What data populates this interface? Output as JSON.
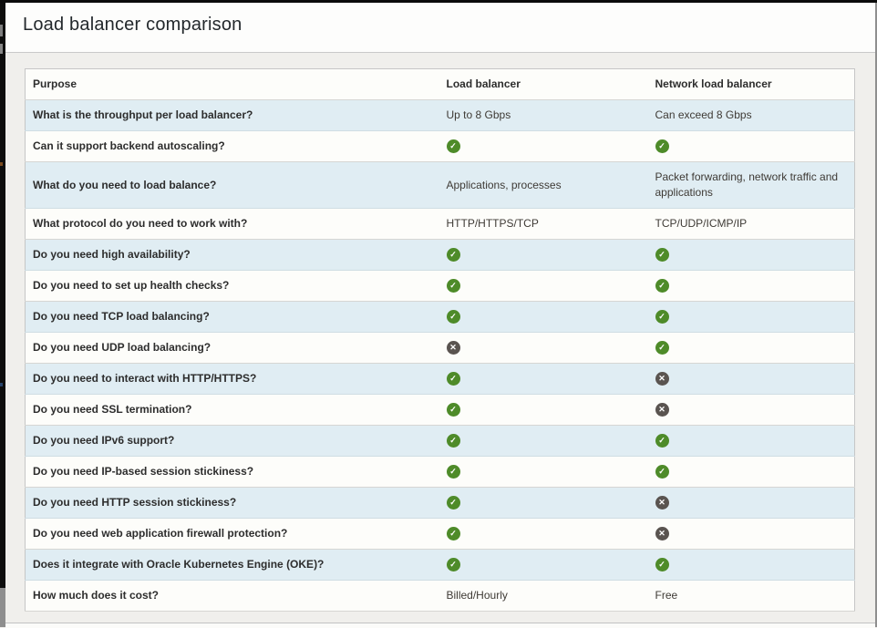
{
  "window": {
    "title": "Load balancer comparison"
  },
  "table": {
    "columns": [
      "Purpose",
      "Load balancer",
      "Network load balancer"
    ],
    "rows": [
      {
        "question": "What is the throughput per load balancer?",
        "load_balancer": {
          "kind": "text",
          "text": "Up to 8 Gbps"
        },
        "network_load_balancer": {
          "kind": "text",
          "text": "Can exceed 8 Gbps"
        }
      },
      {
        "question": "Can it support backend autoscaling?",
        "load_balancer": {
          "kind": "check"
        },
        "network_load_balancer": {
          "kind": "check"
        }
      },
      {
        "question": "What do you need to load balance?",
        "load_balancer": {
          "kind": "text",
          "text": "Applications, processes"
        },
        "network_load_balancer": {
          "kind": "text",
          "text": "Packet forwarding, network traffic and applications"
        }
      },
      {
        "question": "What protocol do you need to work with?",
        "load_balancer": {
          "kind": "text",
          "text": "HTTP/HTTPS/TCP"
        },
        "network_load_balancer": {
          "kind": "text",
          "text": "TCP/UDP/ICMP/IP"
        }
      },
      {
        "question": "Do you need high availability?",
        "load_balancer": {
          "kind": "check"
        },
        "network_load_balancer": {
          "kind": "check"
        }
      },
      {
        "question": "Do you need to set up health checks?",
        "load_balancer": {
          "kind": "check"
        },
        "network_load_balancer": {
          "kind": "check"
        }
      },
      {
        "question": "Do you need TCP load balancing?",
        "load_balancer": {
          "kind": "check"
        },
        "network_load_balancer": {
          "kind": "check"
        }
      },
      {
        "question": "Do you need UDP load balancing?",
        "load_balancer": {
          "kind": "cross"
        },
        "network_load_balancer": {
          "kind": "check"
        }
      },
      {
        "question": "Do you need to interact with HTTP/HTTPS?",
        "load_balancer": {
          "kind": "check"
        },
        "network_load_balancer": {
          "kind": "cross"
        }
      },
      {
        "question": "Do you need SSL termination?",
        "load_balancer": {
          "kind": "check"
        },
        "network_load_balancer": {
          "kind": "cross"
        }
      },
      {
        "question": "Do you need IPv6 support?",
        "load_balancer": {
          "kind": "check"
        },
        "network_load_balancer": {
          "kind": "check"
        }
      },
      {
        "question": "Do you need IP-based session stickiness?",
        "load_balancer": {
          "kind": "check"
        },
        "network_load_balancer": {
          "kind": "check"
        }
      },
      {
        "question": "Do you need HTTP session stickiness?",
        "load_balancer": {
          "kind": "check"
        },
        "network_load_balancer": {
          "kind": "cross"
        }
      },
      {
        "question": "Do you need web application firewall protection?",
        "load_balancer": {
          "kind": "check"
        },
        "network_load_balancer": {
          "kind": "cross"
        }
      },
      {
        "question": "Does it integrate with Oracle Kubernetes Engine (OKE)?",
        "load_balancer": {
          "kind": "check"
        },
        "network_load_balancer": {
          "kind": "check"
        }
      },
      {
        "question": "How much does it cost?",
        "load_balancer": {
          "kind": "text",
          "text": "Billed/Hourly"
        },
        "network_load_balancer": {
          "kind": "text",
          "text": "Free"
        }
      }
    ]
  },
  "icons": {
    "check": "✓",
    "cross": "✕"
  },
  "colors": {
    "row_highlight": "#e0edf3",
    "row_base": "#fdfdfa",
    "check_green": "#4e8b29",
    "cross_gray": "#5a5450"
  }
}
